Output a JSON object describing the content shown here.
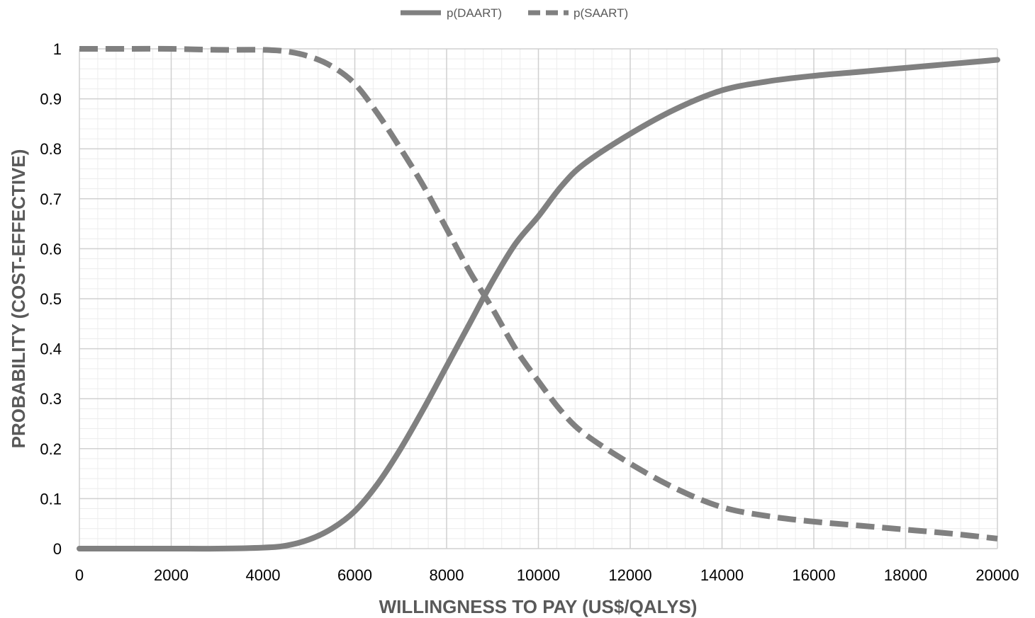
{
  "chart_data": {
    "type": "line",
    "xlabel": "WILLINGNESS TO PAY (US$/QALYS)",
    "ylabel": "PROBABILITY (COST-EFFECTIVE)",
    "xlim": [
      0,
      20000
    ],
    "ylim": [
      0,
      1
    ],
    "x_ticks": [
      "0",
      "2000",
      "4000",
      "6000",
      "8000",
      "10000",
      "12000",
      "14000",
      "16000",
      "18000",
      "20000"
    ],
    "y_ticks": [
      "0",
      "0.1",
      "0.2",
      "0.3",
      "0.4",
      "0.5",
      "0.6",
      "0.7",
      "0.8",
      "0.9",
      "1"
    ],
    "grid": "major and minor",
    "legend_position": "top-center",
    "line_color": "#808080",
    "series": [
      {
        "name": "p(DAART)",
        "style": "solid",
        "x": [
          0,
          1000,
          2000,
          3000,
          4000,
          4500,
          5000,
          5500,
          6000,
          6500,
          7000,
          7500,
          8000,
          8500,
          9000,
          9500,
          10000,
          10500,
          11000,
          12000,
          13000,
          14000,
          15000,
          16000,
          17000,
          18000,
          19000,
          20000
        ],
        "values": [
          0,
          0,
          0,
          0,
          0.002,
          0.006,
          0.018,
          0.04,
          0.075,
          0.13,
          0.2,
          0.28,
          0.365,
          0.45,
          0.535,
          0.61,
          0.665,
          0.725,
          0.77,
          0.83,
          0.88,
          0.917,
          0.935,
          0.946,
          0.954,
          0.962,
          0.97,
          0.978
        ]
      },
      {
        "name": "p(SAART)",
        "style": "dashed",
        "x": [
          0,
          1000,
          2000,
          3000,
          4000,
          4500,
          5000,
          5500,
          6000,
          6500,
          7000,
          7500,
          8000,
          8500,
          9000,
          9500,
          10000,
          10500,
          11000,
          12000,
          13000,
          14000,
          15000,
          16000,
          17000,
          18000,
          19000,
          20000
        ],
        "values": [
          1,
          1,
          1,
          0.998,
          0.998,
          0.995,
          0.985,
          0.965,
          0.93,
          0.87,
          0.8,
          0.725,
          0.64,
          0.555,
          0.48,
          0.4,
          0.335,
          0.275,
          0.23,
          0.17,
          0.12,
          0.083,
          0.065,
          0.054,
          0.046,
          0.038,
          0.03,
          0.02
        ]
      }
    ]
  }
}
